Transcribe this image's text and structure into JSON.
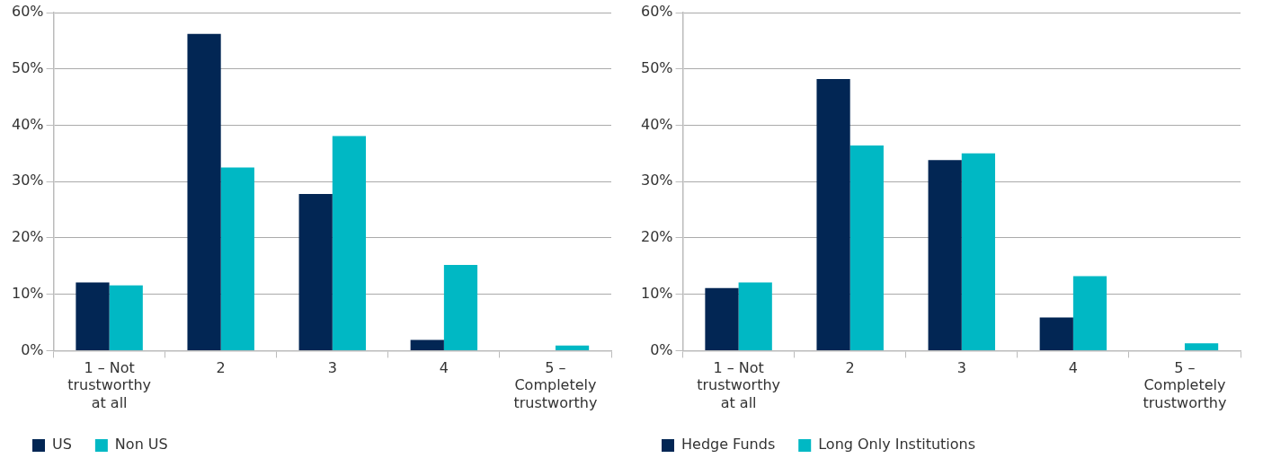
{
  "chart_data": [
    {
      "type": "bar",
      "categories": [
        "1 – Not trustworthy at all",
        "2",
        "3",
        "4",
        "5 – Completely trustworthy"
      ],
      "series": [
        {
          "name": "US",
          "color": "#022654",
          "values": [
            12.1,
            56.2,
            27.8,
            1.9,
            0
          ]
        },
        {
          "name": "Non US",
          "color": "#00b8c4",
          "values": [
            11.6,
            32.5,
            38.1,
            15.2,
            0.9
          ]
        }
      ],
      "ylim": [
        0,
        60
      ],
      "yticks": [
        {
          "value": 0,
          "label": "0%"
        },
        {
          "value": 10,
          "label": "10%"
        },
        {
          "value": 20,
          "label": "20%"
        },
        {
          "value": 30,
          "label": "30%"
        },
        {
          "value": 40,
          "label": "40%"
        },
        {
          "value": 50,
          "label": "50%"
        },
        {
          "value": 60,
          "label": "60%"
        }
      ],
      "grid": "y",
      "legend": "bottom left"
    },
    {
      "type": "bar",
      "categories": [
        "1 – Not trustworthy at all",
        "2",
        "3",
        "4",
        "5 – Completely trustworthy"
      ],
      "series": [
        {
          "name": "Hedge Funds",
          "color": "#022654",
          "values": [
            11.1,
            48.2,
            33.8,
            5.9,
            0
          ]
        },
        {
          "name": "Long Only Institutions",
          "color": "#00b8c4",
          "values": [
            12.1,
            36.4,
            35.0,
            13.2,
            1.3
          ]
        }
      ],
      "ylim": [
        0,
        60
      ],
      "yticks": [
        {
          "value": 0,
          "label": "0%"
        },
        {
          "value": 10,
          "label": "10%"
        },
        {
          "value": 20,
          "label": "20%"
        },
        {
          "value": 30,
          "label": "30%"
        },
        {
          "value": 40,
          "label": "40%"
        },
        {
          "value": 50,
          "label": "50%"
        },
        {
          "value": 60,
          "label": "60%"
        }
      ],
      "grid": "y",
      "legend": "bottom left"
    }
  ]
}
